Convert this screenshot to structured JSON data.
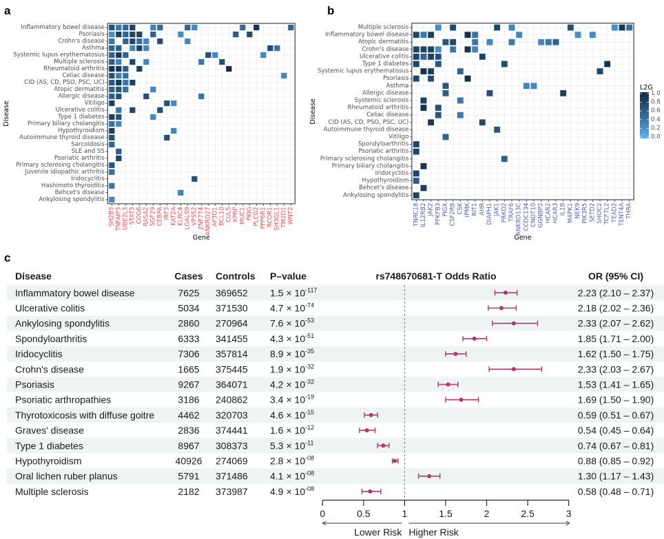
{
  "chart_data": [
    {
      "type": "heatmap",
      "panel_label": "a",
      "xlabel": "Gene",
      "ylabel": "Disease",
      "value_name": "L2G",
      "value_range": [
        0,
        1
      ],
      "color_low": "#56B1F7",
      "color_mid": "#336A98",
      "color_high": "#132B43",
      "x_tick_label_color": "#e64b55",
      "grid": true,
      "x_categories": [
        "SH2B3",
        "TNFAIP3",
        "UBE2L3",
        "STAT3",
        "COG6",
        "RASA2",
        "SGF29",
        "CEBPA",
        "IRF3",
        "KAT2A",
        "KLRC4",
        "LGALS9",
        "VPS52",
        "ZNF774",
        "ANKRD27",
        "AP3D1",
        "BCL10",
        "CUL5",
        "KPRP",
        "MUC1",
        "PKIG",
        "PLCG2",
        "PPP6R1",
        "RCOR1",
        "SH3GL1",
        "TM2D1",
        "WNT2"
      ],
      "rows": [
        {
          "disease": "Inflammatory bowel disease",
          "l2g": {
            "SH2B3": 0.7,
            "TNFAIP3": 0.4,
            "UBE2L3": 0.55,
            "STAT3": 0.82,
            "SGF29": 0.32,
            "CEBPA": 0.5,
            "LGALS9": 0.55,
            "VPS52": 0.3,
            "MUC1": 0.5,
            "PLCG2": 0.95,
            "WNT2": 0.55
          }
        },
        {
          "disease": "Psoriasis",
          "l2g": {
            "SH2B3": 0.25,
            "TNFAIP3": 0.85,
            "UBE2L3": 0.55,
            "STAT3": 0.78,
            "COG6": 0.8,
            "SGF29": 0.55,
            "KLRC4": 0.25,
            "KPRP": 0.6,
            "PKIG": 0.72
          }
        },
        {
          "disease": "Crohn's disease",
          "l2g": {
            "SH2B3": 0.42,
            "UBE2L3": 0.55,
            "STAT3": 0.78,
            "COG6": 0.45,
            "RASA2": 0.3,
            "CEBPA": 0.72,
            "LGALS9": 0.3
          }
        },
        {
          "disease": "Asthma",
          "l2g": {
            "SH2B3": 0.55,
            "TNFAIP3": 0.6,
            "STAT3": 0.3,
            "COG6": 0.82,
            "RASA2": 0.3,
            "RCOR1": 0.75,
            "SH3GL1": 0.45
          }
        },
        {
          "disease": "Systemic lupus erythematosus",
          "l2g": {
            "SH2B3": 0.58,
            "TNFAIP3": 0.92,
            "UBE2L3": 0.55,
            "ANKRD27": 0.7,
            "AP3D1": 0.3,
            "PPP6R1": 0.28
          }
        },
        {
          "disease": "Multiple sclerosis",
          "l2g": {
            "SH2B3": 0.6,
            "TNFAIP3": 0.35,
            "STAT3": 0.8,
            "RASA2": 0.3,
            "ZNF774": 0.4,
            "BCL10": 0.7
          }
        },
        {
          "disease": "Rheumatoid arthritis",
          "l2g": {
            "SH2B3": 0.95,
            "TNFAIP3": 0.9,
            "UBE2L3": 0.6,
            "COG6": 0.85,
            "CUL5": 1.0
          }
        },
        {
          "disease": "Celiac disease",
          "l2g": {
            "SH2B3": 0.68,
            "TNFAIP3": 0.35,
            "UBE2L3": 0.45,
            "TM2D1": 0.28
          }
        },
        {
          "disease": "CID (AS, CD, PSO, PSC, UC)",
          "l2g": {
            "SH2B3": 0.65,
            "TNFAIP3": 0.9,
            "UBE2L3": 0.42,
            "STAT3": 0.8
          }
        },
        {
          "disease": "Atopic dermatitis",
          "l2g": {
            "SH2B3": 0.58,
            "TNFAIP3": 0.68,
            "UBE2L3": 0.45,
            "SGF29": 0.3
          }
        },
        {
          "disease": "Allergic disease",
          "l2g": {
            "SH2B3": 0.58,
            "TNFAIP3": 0.7,
            "RASA2": 0.7,
            "ZNF774": 0.45
          }
        },
        {
          "disease": "Vitiligo",
          "l2g": {
            "SH2B3": 0.85,
            "IRF3": 0.7,
            "KAT2A": 0.28
          }
        },
        {
          "disease": "Ulcerative colitis",
          "l2g": {
            "TNFAIP3": 0.42,
            "STAT3": 0.78,
            "CEBPA": 0.7
          }
        },
        {
          "disease": "Type 1 diabetes",
          "l2g": {
            "SH2B3": 0.82,
            "TNFAIP3": 0.68,
            "SGF29": 0.3
          }
        },
        {
          "disease": "Primary biliary cholangitis",
          "l2g": {
            "SH2B3": 0.45,
            "TNFAIP3": 0.3
          }
        },
        {
          "disease": "Hypothyroidism",
          "l2g": {
            "SH2B3": 0.85,
            "KAT2A": 0.3
          }
        },
        {
          "disease": "Autoimmune thyroid disease",
          "l2g": {
            "SH2B3": 0.72,
            "IRF3": 0.72
          }
        },
        {
          "disease": "Sarcoidosis",
          "l2g": {
            "SH2B3": 0.55
          }
        },
        {
          "disease": "SLE and SS",
          "l2g": {
            "TNFAIP3": 0.6
          }
        },
        {
          "disease": "Psoriatic arthritis",
          "l2g": {
            "TNFAIP3": 0.82
          }
        },
        {
          "disease": "Primary sclerosing cholangitis",
          "l2g": {
            "SH2B3": 0.65
          }
        },
        {
          "disease": "Juvenile idiopathic arthritis",
          "l2g": {
            "SH2B3": 0.45
          }
        },
        {
          "disease": "Iridocyclitis",
          "l2g": {
            "VPS52": 0.68
          }
        },
        {
          "disease": "Hashimoto thyroiditis",
          "l2g": {
            "SH2B3": 0.42
          }
        },
        {
          "disease": "Behcet's disease",
          "l2g": {
            "KLRC4": 0.32
          }
        },
        {
          "disease": "Ankylosing spondylitis",
          "l2g": {
            "SH2B3": 0.28
          }
        }
      ]
    },
    {
      "type": "heatmap",
      "panel_label": "b",
      "xlabel": "Gene",
      "ylabel": "Disease",
      "value_name": "L2G",
      "value_range": [
        0,
        1
      ],
      "color_low": "#56B1F7",
      "color_mid": "#336A98",
      "color_high": "#132B43",
      "x_tick_label_color": "#4b5bb5",
      "grid": true,
      "legend": {
        "title": "L2G",
        "ticks": [
          "1.0",
          "0.8",
          "0.6",
          "0.4",
          "0.2",
          "0.0"
        ],
        "position": "right"
      },
      "x_categories": [
        "TNRC18",
        "IL12RB2",
        "JAK2",
        "PFKFB3",
        "PIGX",
        "CSF2RB",
        "CSK",
        "IPMK",
        "RIT1",
        "AHR",
        "DIAPH1",
        "JAK1",
        "PRKD2",
        "TRAF6",
        "ANKRD13C",
        "CCDC134",
        "CNOT10",
        "GGNBP2",
        "HCAR2",
        "HCAR3",
        "IL1B",
        "MAPK1",
        "NEK9",
        "PIK3R5",
        "SETD2",
        "SHOC2",
        "TCF7L2",
        "TEAD2",
        "TENT4A",
        "THRA"
      ],
      "rows": [
        {
          "disease": "Multiple sclerosis",
          "l2g": {
            "PFKFB3": 0.25,
            "CSF2RB": 0.78,
            "JAK1": 0.78,
            "TRAF6": 0.3,
            "MAPK1": 0.7,
            "TEAD2": 0.25,
            "TENT4A": 0.9,
            "THRA": 0.45
          }
        },
        {
          "disease": "Inflammatory bowel disease",
          "l2g": {
            "TNRC18": 0.8,
            "IL12RB2": 0.4,
            "JAK2": 0.85,
            "IPMK": 0.95,
            "RIT1": 0.42,
            "ANKRD13C": 0.3,
            "NEK9": 0.25,
            "SETD2": 0.28
          }
        },
        {
          "disease": "Atopic dermatitis",
          "l2g": {
            "PIGX": 0.65,
            "CSF2RB": 0.78,
            "RIT1": 0.42,
            "DIAPH1": 0.3,
            "TRAF6": 0.4,
            "GGNBP2": 0.3,
            "HCAR2": 0.4,
            "HCAR3": 0.55
          }
        },
        {
          "disease": "Crohn's disease",
          "l2g": {
            "TNRC18": 0.8,
            "IL12RB2": 0.82,
            "JAK2": 0.82,
            "PFKFB3": 0.25,
            "CSF2RB": 0.4,
            "IPMK": 0.95,
            "RIT1": 0.32
          }
        },
        {
          "disease": "Ulcerative colitis",
          "l2g": {
            "TNRC18": 0.8,
            "IL12RB2": 0.55,
            "JAK2": 0.85,
            "PFKFB3": 0.72,
            "AHR": 0.8
          }
        },
        {
          "disease": "Type 1 diabetes",
          "l2g": {
            "TNRC18": 0.8,
            "PFKFB3": 0.65,
            "PRKD2": 0.75,
            "TCF7L2": 0.95
          }
        },
        {
          "disease": "Systemic lupus erythematosus",
          "l2g": {
            "IL12RB2": 0.95,
            "JAK2": 0.85,
            "CSK": 0.55,
            "SHOC2": 0.78
          }
        },
        {
          "disease": "Psoriasis",
          "l2g": {
            "TNRC18": 0.78,
            "JAK2": 0.72,
            "IPMK": 0.98
          }
        },
        {
          "disease": "Asthma",
          "l2g": {
            "PIGX": 0.65,
            "CCDC134": 0.3,
            "CNOT10": 0.3
          }
        },
        {
          "disease": "Allergic disease",
          "l2g": {
            "PIGX": 0.6,
            "DIAPH1": 0.7,
            "IL1B": 0.85
          }
        },
        {
          "disease": "Systemic sclerosis",
          "l2g": {
            "IL12RB2": 0.82,
            "CSK": 0.4
          }
        },
        {
          "disease": "Rheumatoid arthritis",
          "l2g": {
            "IL12RB2": 0.95,
            "PFKFB3": 0.7
          }
        },
        {
          "disease": "Celiac disease",
          "l2g": {
            "PFKFB3": 0.65,
            "CSK": 0.4
          }
        },
        {
          "disease": "CID (AS, CD, PSO, PSC, UC)",
          "l2g": {
            "JAK2": 0.9,
            "AHR": 0.75
          }
        },
        {
          "disease": "Autoimmune thyroid disease",
          "l2g": {
            "JAK1": 0.65
          }
        },
        {
          "disease": "Vitiligo",
          "l2g": {
            "PIGX": 0.55
          }
        },
        {
          "disease": "Spondyloarthritis",
          "l2g": {
            "TNRC18": 0.8
          }
        },
        {
          "disease": "Psoriatic arthritis",
          "l2g": {
            "TNRC18": 0.8
          }
        },
        {
          "disease": "Primary sclerosing cholangitis",
          "l2g": {
            "PRKD2": 0.58
          }
        },
        {
          "disease": "Primary biliary cholangitis",
          "l2g": {
            "IL12RB2": 0.92
          }
        },
        {
          "disease": "Iridocyclitis",
          "l2g": {
            "TNRC18": 0.8
          }
        },
        {
          "disease": "Hypothyroidism",
          "l2g": {
            "TNRC18": 0.6
          }
        },
        {
          "disease": "Behcet's disease",
          "l2g": {
            "IL12RB2": 0.85
          }
        },
        {
          "disease": "Ankylosing spondylitis",
          "l2g": {
            "TNRC18": 0.8
          }
        }
      ]
    },
    {
      "type": "table",
      "panel_label": "c",
      "title": "rs748670681-T Odds Ratio",
      "columns": {
        "disease": "Disease",
        "cases": "Cases",
        "controls": "Controls",
        "p_value": "P–value",
        "or_ci": "OR (95% CI)"
      },
      "p_times_label": "× 10",
      "forest": {
        "xlim": [
          0,
          3
        ],
        "xticks": [
          "0",
          "0.5",
          "1",
          "1.5",
          "2",
          "2.5",
          "3"
        ],
        "reference_line": 1,
        "lower_label": "Lower Risk",
        "higher_label": "Higher Risk",
        "point_color": "#b5356a",
        "reference_color": "#e8483f",
        "band_color": "#eef3f3"
      },
      "rows": [
        {
          "disease": "Inflammatory bowel disease",
          "cases": "7625",
          "controls": "369652",
          "p_mantissa": "1.5",
          "p_exponent": "-117",
          "or": 2.23,
          "ci_low": 2.1,
          "ci_high": 2.37,
          "or_ci": "2.23 (2.10 – 2.37)"
        },
        {
          "disease": "Ulcerative colitis",
          "cases": "5034",
          "controls": "371530",
          "p_mantissa": "4.7",
          "p_exponent": "-74",
          "or": 2.18,
          "ci_low": 2.02,
          "ci_high": 2.36,
          "or_ci": "2.18 (2.02 – 2.36)"
        },
        {
          "disease": "Ankylosing spondylitis",
          "cases": "2860",
          "controls": "270964",
          "p_mantissa": "7.6",
          "p_exponent": "-53",
          "or": 2.33,
          "ci_low": 2.07,
          "ci_high": 2.62,
          "or_ci": "2.33 (2.07 – 2.62)"
        },
        {
          "disease": "Spondyloarthritis",
          "cases": "6333",
          "controls": "341455",
          "p_mantissa": "4.3",
          "p_exponent": "-51",
          "or": 1.85,
          "ci_low": 1.71,
          "ci_high": 2.0,
          "or_ci": "1.85 (1.71 – 2.00)"
        },
        {
          "disease": "Iridocyclitis",
          "cases": "7306",
          "controls": "357814",
          "p_mantissa": "8.9",
          "p_exponent": "-35",
          "or": 1.62,
          "ci_low": 1.5,
          "ci_high": 1.75,
          "or_ci": "1.62 (1.50 – 1.75)"
        },
        {
          "disease": "Crohn's disease",
          "cases": "1665",
          "controls": "375445",
          "p_mantissa": "1.9",
          "p_exponent": "-32",
          "or": 2.33,
          "ci_low": 2.03,
          "ci_high": 2.67,
          "or_ci": "2.33 (2.03 – 2.67)"
        },
        {
          "disease": "Psoriasis",
          "cases": "9267",
          "controls": "364071",
          "p_mantissa": "4.2",
          "p_exponent": "-32",
          "or": 1.53,
          "ci_low": 1.41,
          "ci_high": 1.65,
          "or_ci": "1.53 (1.41 – 1.65)"
        },
        {
          "disease": "Psoriatic arthropathies",
          "cases": "3186",
          "controls": "240862",
          "p_mantissa": "3.4",
          "p_exponent": "-19",
          "or": 1.69,
          "ci_low": 1.5,
          "ci_high": 1.9,
          "or_ci": "1.69 (1.50 – 1.90)"
        },
        {
          "disease": "Thyrotoxicosis with diffuse goitre",
          "cases": "4462",
          "controls": "320703",
          "p_mantissa": "4.6",
          "p_exponent": "-15",
          "or": 0.59,
          "ci_low": 0.51,
          "ci_high": 0.67,
          "or_ci": "0.59 (0.51 – 0.67)"
        },
        {
          "disease": "Graves' disease",
          "cases": "2836",
          "controls": "374441",
          "p_mantissa": "1.6",
          "p_exponent": "-12",
          "or": 0.54,
          "ci_low": 0.45,
          "ci_high": 0.64,
          "or_ci": "0.54 (0.45 – 0.64)"
        },
        {
          "disease": "Type 1 diabetes",
          "cases": "8967",
          "controls": "308373",
          "p_mantissa": "5.3",
          "p_exponent": "-11",
          "or": 0.74,
          "ci_low": 0.67,
          "ci_high": 0.81,
          "or_ci": "0.74 (0.67 – 0.81)"
        },
        {
          "disease": "Hypothyroidism",
          "cases": "40926",
          "controls": "274069",
          "p_mantissa": "2.8",
          "p_exponent": "-08",
          "or": 0.88,
          "ci_low": 0.85,
          "ci_high": 0.92,
          "or_ci": "0.88 (0.85 – 0.92)"
        },
        {
          "disease": "Oral lichen ruber planus",
          "cases": "5791",
          "controls": "371486",
          "p_mantissa": "4.1",
          "p_exponent": "-08",
          "or": 1.3,
          "ci_low": 1.17,
          "ci_high": 1.43,
          "or_ci": "1.30 (1.17 – 1.43)"
        },
        {
          "disease": "Multiple sclerosis",
          "cases": "2182",
          "controls": "373987",
          "p_mantissa": "4.9",
          "p_exponent": "-08",
          "or": 0.58,
          "ci_low": 0.48,
          "ci_high": 0.71,
          "or_ci": "0.58 (0.48 – 0.71)"
        }
      ]
    }
  ]
}
